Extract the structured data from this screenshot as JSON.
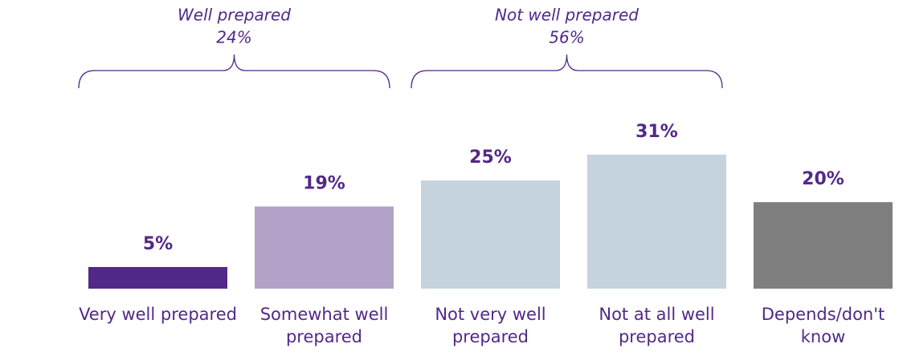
{
  "chart_data": {
    "type": "bar",
    "categories": [
      "Very well prepared",
      "Somewhat well prepared",
      "Not very well prepared",
      "Not at all well prepared",
      "Depends/don't know"
    ],
    "values": [
      5,
      19,
      25,
      31,
      20
    ],
    "value_labels": [
      "5%",
      "19%",
      "25%",
      "31%",
      "20%"
    ],
    "colors": [
      "#522888",
      "#b3a2c8",
      "#c5d3de",
      "#c5d3de",
      "#7f7f7f"
    ],
    "ylim": [
      0,
      66
    ],
    "brackets": [
      {
        "label": "Well prepared",
        "value": 24,
        "value_label": "24%"
      },
      {
        "label": "Not well prepared",
        "value": 56,
        "value_label": "56%"
      }
    ]
  }
}
